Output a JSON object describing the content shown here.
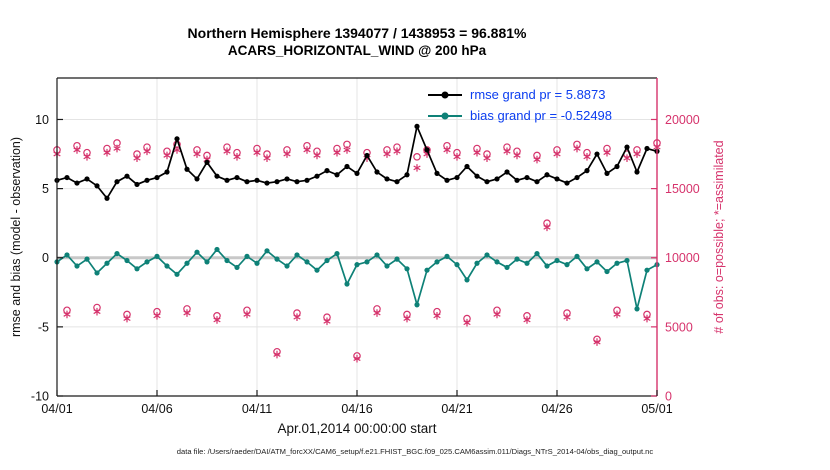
{
  "title": {
    "line1": "Northern Hemisphere 1394077 / 1438953 = 96.881%",
    "line2": "ACARS_HORIZONTAL_WIND @ 200 hPa"
  },
  "legend": [
    {
      "label": "rmse grand pr = 5.8873",
      "series": "rmse"
    },
    {
      "label": "bias grand pr = -0.52498",
      "series": "bias"
    }
  ],
  "axes": {
    "left_label": "rmse and bias (model - observation)",
    "right_label": "# of obs: o=possible; *=assimilated",
    "x_label": "Apr.01,2014 00:00:00 start"
  },
  "footer": "data file: /Users/raeder/DAI/ATM_forcXX/CAM6_setup/f.e21.FHIST_BGC.f09_025.CAM6assim.011/Diags_NTrS_2014-04/obs_diag_output.nc",
  "colors": {
    "rmse": "#000000",
    "bias": "#0e8177",
    "obs": "#d6336c",
    "legend_text": "#0b3df0",
    "zero_line": "#c8c8c8",
    "grid": "#e4e4e4",
    "spine": "#1a1a1a"
  },
  "chart_data": {
    "type": "line",
    "title": "Northern Hemisphere 1394077 / 1438953 = 96.881% | ACARS_HORIZONTAL_WIND @ 200 hPa",
    "x_unit": "days since Apr.01,2014 00:00:00",
    "x_range": [
      0,
      30
    ],
    "left_ylim": [
      -10,
      13
    ],
    "right_ylim": [
      0,
      23000
    ],
    "left_ticks": [
      -10,
      -5,
      0,
      5,
      10
    ],
    "right_ticks": [
      {
        "v": 0,
        "label": "0"
      },
      {
        "v": 5000,
        "label": "5000"
      },
      {
        "v": 10000,
        "label": "10000"
      },
      {
        "v": 15000,
        "label": "15000"
      },
      {
        "v": 20000,
        "label": "20000"
      }
    ],
    "x_ticks": [
      {
        "t": 0,
        "label": "04/01"
      },
      {
        "t": 5,
        "label": "04/06"
      },
      {
        "t": 10,
        "label": "04/11"
      },
      {
        "t": 15,
        "label": "04/16"
      },
      {
        "t": 20,
        "label": "04/21"
      },
      {
        "t": 25,
        "label": "04/26"
      },
      {
        "t": 30,
        "label": "05/01"
      }
    ],
    "x": [
      0,
      0.5,
      1,
      1.5,
      2,
      2.5,
      3,
      3.5,
      4,
      4.5,
      5,
      5.5,
      6,
      6.5,
      7,
      7.5,
      8,
      8.5,
      9,
      9.5,
      10,
      10.5,
      11,
      11.5,
      12,
      12.5,
      13,
      13.5,
      14,
      14.5,
      15,
      15.5,
      16,
      16.5,
      17,
      17.5,
      18,
      18.5,
      19,
      19.5,
      20,
      20.5,
      21,
      21.5,
      22,
      22.5,
      23,
      23.5,
      24,
      24.5,
      25,
      25.5,
      26,
      26.5,
      27,
      27.5,
      28,
      28.5,
      29,
      29.5,
      30
    ],
    "series": [
      {
        "name": "rmse",
        "axis": "left",
        "style": "line-dot",
        "color_key": "rmse",
        "values": [
          5.6,
          5.8,
          5.4,
          5.7,
          5.2,
          4.3,
          5.5,
          5.9,
          5.3,
          5.6,
          5.8,
          6.2,
          8.6,
          6.4,
          5.7,
          6.9,
          5.9,
          5.6,
          5.8,
          5.5,
          5.6,
          5.4,
          5.5,
          5.7,
          5.5,
          5.6,
          5.9,
          6.3,
          6.0,
          6.6,
          6.1,
          7.4,
          6.2,
          5.7,
          5.5,
          6.0,
          9.5,
          7.8,
          6.1,
          5.6,
          5.8,
          6.6,
          5.9,
          5.5,
          5.7,
          6.2,
          5.6,
          5.8,
          5.5,
          6.0,
          5.7,
          5.4,
          5.8,
          6.3,
          7.5,
          6.1,
          6.6,
          8.0,
          6.2,
          7.9,
          7.7
        ]
      },
      {
        "name": "bias",
        "axis": "left",
        "style": "line-dot",
        "color_key": "bias",
        "values": [
          -0.3,
          0.2,
          -0.6,
          -0.1,
          -1.1,
          -0.4,
          0.3,
          -0.2,
          -0.8,
          -0.3,
          0.1,
          -0.6,
          -1.2,
          -0.4,
          0.4,
          -0.3,
          0.6,
          -0.2,
          -0.7,
          0.1,
          -0.4,
          0.5,
          -0.1,
          -0.6,
          0.2,
          -0.3,
          -0.9,
          -0.2,
          0.3,
          -1.9,
          -0.5,
          -0.3,
          0.2,
          -0.6,
          -0.1,
          -0.8,
          -3.4,
          -0.9,
          -0.3,
          0.1,
          -0.5,
          -1.6,
          -0.4,
          0.2,
          -0.3,
          -0.7,
          -0.1,
          -0.4,
          0.3,
          -0.6,
          -0.2,
          -0.5,
          0.1,
          -0.8,
          -0.3,
          -1.0,
          -0.4,
          -0.2,
          -3.7,
          -0.9,
          -0.5
        ]
      },
      {
        "name": "possible_obs",
        "axis": "right",
        "style": "circle",
        "color_key": "obs",
        "values": [
          17800,
          6200,
          18100,
          17600,
          6400,
          17900,
          18300,
          5900,
          17500,
          18000,
          6100,
          17700,
          18200,
          6300,
          17800,
          17400,
          5800,
          18000,
          17600,
          6200,
          17900,
          17500,
          3200,
          17800,
          6000,
          18100,
          17700,
          5700,
          17900,
          18200,
          2900,
          17600,
          6300,
          17800,
          18000,
          5900,
          17300,
          17800,
          6100,
          18100,
          17600,
          5600,
          17900,
          17500,
          6200,
          18000,
          17700,
          5800,
          17400,
          12500,
          17800,
          6000,
          18200,
          17600,
          4100,
          17900,
          6200,
          17500,
          17800,
          5900,
          18300
        ]
      },
      {
        "name": "assimilated_obs",
        "axis": "right",
        "style": "asterisk",
        "color_key": "obs",
        "values": [
          17500,
          5900,
          17800,
          17300,
          6100,
          17600,
          17900,
          5600,
          17200,
          17700,
          5800,
          17400,
          17800,
          6000,
          17500,
          17100,
          5500,
          17700,
          17300,
          5900,
          17600,
          17200,
          3000,
          17500,
          5700,
          17800,
          17400,
          5400,
          17600,
          17800,
          2700,
          17200,
          6000,
          17500,
          17700,
          5600,
          16500,
          17500,
          5800,
          17800,
          17300,
          5300,
          17600,
          17200,
          5900,
          17700,
          17400,
          5500,
          17100,
          12200,
          17500,
          5700,
          17900,
          17300,
          3900,
          17600,
          5900,
          17200,
          17500,
          5600,
          18000
        ]
      }
    ]
  }
}
